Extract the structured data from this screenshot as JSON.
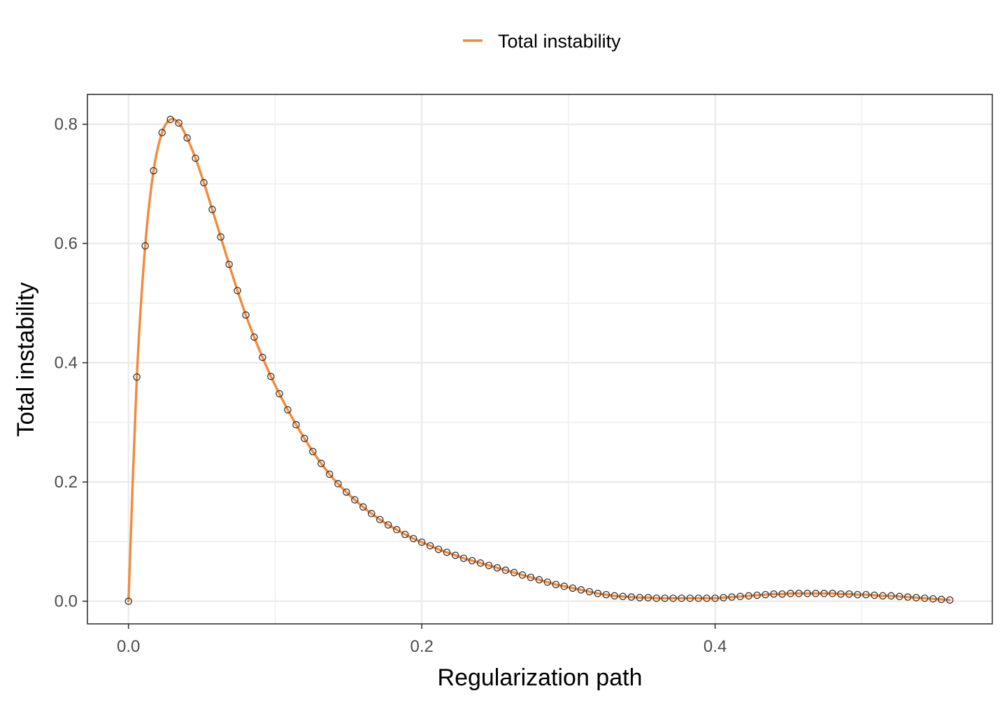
{
  "chart_data": {
    "type": "line",
    "title": "",
    "xlabel": "Regularization path",
    "ylabel": "Total instability",
    "xlim": [
      -0.028,
      0.589
    ],
    "ylim": [
      -0.038,
      0.85
    ],
    "x_ticks": [
      0.0,
      0.2,
      0.4
    ],
    "x_tick_labels": [
      "0.0",
      "0.2",
      "0.4"
    ],
    "y_ticks": [
      0.0,
      0.2,
      0.4,
      0.6,
      0.8
    ],
    "y_tick_labels": [
      "0.0",
      "0.2",
      "0.4",
      "0.6",
      "0.8"
    ],
    "grid": true,
    "legend_position": "top",
    "series": [
      {
        "name": "Total instability",
        "color": "#f28a3b",
        "marker": "open-circle",
        "x": [
          0.0,
          0.0057,
          0.0114,
          0.0171,
          0.0229,
          0.0286,
          0.0343,
          0.04,
          0.0457,
          0.0514,
          0.0571,
          0.0629,
          0.0686,
          0.0743,
          0.08,
          0.0857,
          0.0914,
          0.0971,
          0.1029,
          0.1086,
          0.1143,
          0.12,
          0.1257,
          0.1314,
          0.1371,
          0.1429,
          0.1486,
          0.1543,
          0.16,
          0.1657,
          0.1714,
          0.1771,
          0.1829,
          0.1886,
          0.1943,
          0.2,
          0.2057,
          0.2114,
          0.2171,
          0.2229,
          0.2286,
          0.2343,
          0.24,
          0.2457,
          0.2514,
          0.2571,
          0.2629,
          0.2686,
          0.2743,
          0.28,
          0.2857,
          0.2914,
          0.2971,
          0.3029,
          0.3086,
          0.3143,
          0.32,
          0.3257,
          0.3314,
          0.3371,
          0.3429,
          0.3486,
          0.3543,
          0.36,
          0.3657,
          0.3714,
          0.3771,
          0.3829,
          0.3886,
          0.3943,
          0.4,
          0.4057,
          0.4114,
          0.4171,
          0.4229,
          0.4286,
          0.4343,
          0.44,
          0.4457,
          0.4514,
          0.4571,
          0.4629,
          0.4686,
          0.4743,
          0.48,
          0.4857,
          0.4914,
          0.4971,
          0.5029,
          0.5086,
          0.5143,
          0.52,
          0.5257,
          0.5314,
          0.5371,
          0.5429,
          0.5486,
          0.5543,
          0.56
        ],
        "y": [
          0.0,
          0.376,
          0.596,
          0.722,
          0.786,
          0.808,
          0.802,
          0.777,
          0.743,
          0.702,
          0.657,
          0.611,
          0.565,
          0.521,
          0.48,
          0.443,
          0.409,
          0.377,
          0.348,
          0.321,
          0.296,
          0.273,
          0.251,
          0.231,
          0.213,
          0.197,
          0.183,
          0.17,
          0.158,
          0.147,
          0.137,
          0.128,
          0.12,
          0.112,
          0.105,
          0.099,
          0.093,
          0.087,
          0.082,
          0.077,
          0.072,
          0.068,
          0.064,
          0.06,
          0.056,
          0.052,
          0.048,
          0.044,
          0.04,
          0.036,
          0.032,
          0.028,
          0.025,
          0.022,
          0.019,
          0.016,
          0.013,
          0.011,
          0.009,
          0.008,
          0.007,
          0.006,
          0.006,
          0.005,
          0.005,
          0.005,
          0.005,
          0.005,
          0.005,
          0.005,
          0.005,
          0.006,
          0.007,
          0.008,
          0.009,
          0.01,
          0.011,
          0.012,
          0.012,
          0.013,
          0.013,
          0.013,
          0.013,
          0.013,
          0.013,
          0.012,
          0.012,
          0.011,
          0.011,
          0.01,
          0.009,
          0.009,
          0.008,
          0.007,
          0.006,
          0.005,
          0.004,
          0.003,
          0.002
        ]
      }
    ]
  }
}
